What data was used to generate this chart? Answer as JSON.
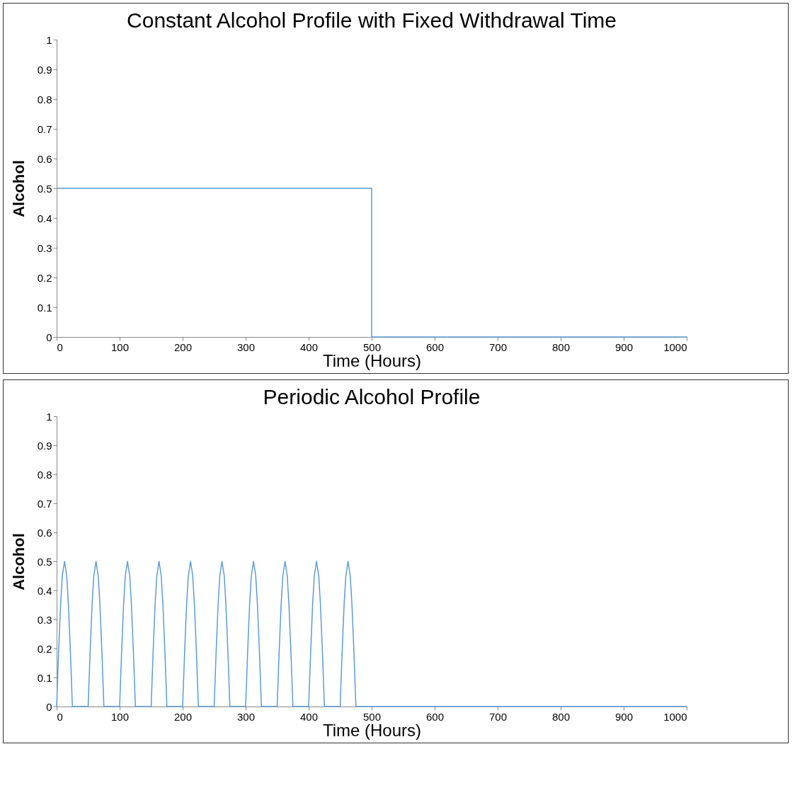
{
  "chart_data": [
    {
      "type": "line",
      "title": "Constant Alcohol Profile with Fixed Withdrawal Time",
      "xlabel": "Time (Hours)",
      "ylabel": "Alcohol",
      "grid": false,
      "marker": "none",
      "line_style": "solid",
      "xlim": [
        0,
        1000
      ],
      "xticks": [
        0,
        100,
        200,
        300,
        400,
        500,
        600,
        700,
        800,
        900,
        1000
      ],
      "ylim": [
        0,
        1
      ],
      "yticks": [
        0,
        0.1,
        0.2,
        0.3,
        0.4,
        0.5,
        0.6,
        0.7,
        0.8,
        0.9,
        1
      ],
      "series": [
        {
          "color": "#5b9bd5",
          "x": [
            0,
            500,
            500,
            1000
          ],
          "values": [
            0.5,
            0.5,
            0,
            0
          ]
        }
      ]
    },
    {
      "type": "line",
      "title": "Periodic Alcohol Profile",
      "xlabel": "Time (Hours)",
      "ylabel": "Alcohol",
      "grid": false,
      "marker": "none",
      "line_style": "solid",
      "xlim": [
        0,
        1000
      ],
      "xticks": [
        0,
        100,
        200,
        300,
        400,
        500,
        600,
        700,
        800,
        900,
        1000
      ],
      "ylim": [
        0,
        1
      ],
      "yticks": [
        0,
        0.1,
        0.2,
        0.3,
        0.4,
        0.5,
        0.6,
        0.7,
        0.8,
        0.9,
        1
      ],
      "series": [
        {
          "color": "#5b9bd5",
          "x": [
            0,
            3,
            6.25,
            9,
            12.5,
            16,
            18.75,
            22,
            25,
            50,
            53,
            56.25,
            59,
            62.5,
            66,
            68.75,
            72,
            75,
            100,
            103,
            106.25,
            109,
            112.5,
            116,
            118.75,
            122,
            125,
            150,
            153,
            156.25,
            159,
            162.5,
            166,
            168.75,
            172,
            175,
            200,
            203,
            206.25,
            209,
            212.5,
            216,
            218.75,
            222,
            225,
            250,
            253,
            256.25,
            259,
            262.5,
            266,
            268.75,
            272,
            275,
            300,
            303,
            306.25,
            309,
            312.5,
            316,
            318.75,
            322,
            325,
            350,
            353,
            356.25,
            359,
            362.5,
            366,
            368.75,
            372,
            375,
            400,
            403,
            406.25,
            409,
            412.5,
            416,
            418.75,
            422,
            425,
            450,
            453,
            456.25,
            459,
            462.5,
            466,
            468.75,
            472,
            475,
            1000
          ],
          "values": [
            0,
            0.18,
            0.35,
            0.45,
            0.5,
            0.45,
            0.35,
            0.18,
            0,
            0,
            0.18,
            0.35,
            0.45,
            0.5,
            0.45,
            0.35,
            0.18,
            0,
            0,
            0.18,
            0.35,
            0.45,
            0.5,
            0.45,
            0.35,
            0.18,
            0,
            0,
            0.18,
            0.35,
            0.45,
            0.5,
            0.45,
            0.35,
            0.18,
            0,
            0,
            0.18,
            0.35,
            0.45,
            0.5,
            0.45,
            0.35,
            0.18,
            0,
            0,
            0.18,
            0.35,
            0.45,
            0.5,
            0.45,
            0.35,
            0.18,
            0,
            0,
            0.18,
            0.35,
            0.45,
            0.5,
            0.45,
            0.35,
            0.18,
            0,
            0,
            0.18,
            0.35,
            0.45,
            0.5,
            0.45,
            0.35,
            0.18,
            0,
            0,
            0.18,
            0.35,
            0.45,
            0.5,
            0.45,
            0.35,
            0.18,
            0,
            0,
            0.18,
            0.35,
            0.45,
            0.5,
            0.45,
            0.35,
            0.18,
            0,
            0
          ]
        }
      ]
    }
  ]
}
